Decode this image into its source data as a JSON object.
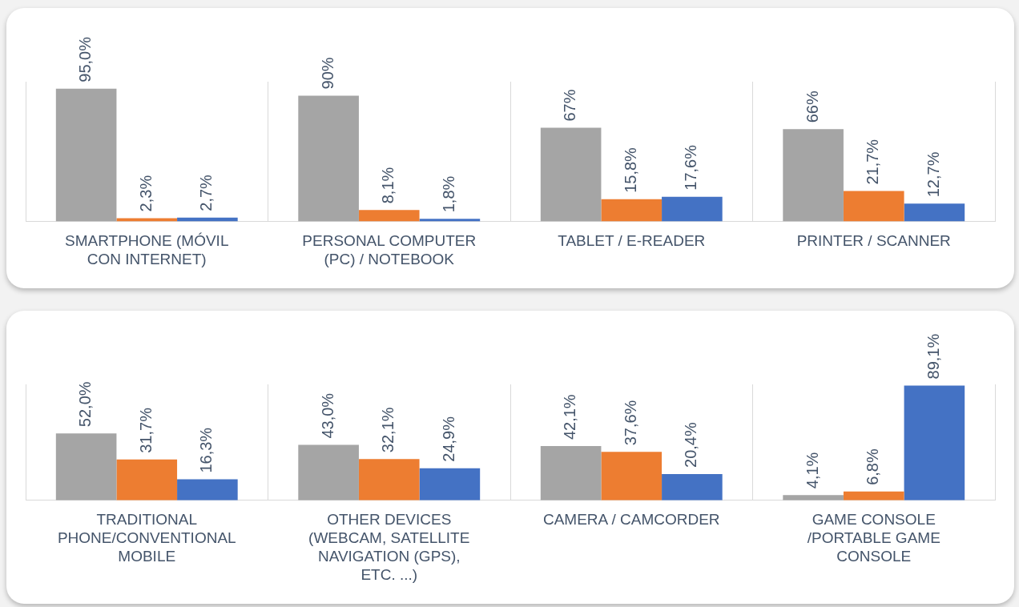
{
  "chart_data": [
    {
      "type": "bar",
      "categories": [
        "SMARTPHONE (MÓVIL CON INTERNET)",
        "PERSONAL COMPUTER (PC) / NOTEBOOK",
        "TABLET / E-READER",
        "PRINTER / SCANNER"
      ],
      "grid": "x",
      "series": [
        {
          "color": "#a5a5a5",
          "values": [
            95.0,
            90,
            67,
            66
          ],
          "value_labels": [
            "95,0%",
            "90%",
            "67%",
            "66%"
          ]
        },
        {
          "color": "#ed7d31",
          "values": [
            2.3,
            8.1,
            15.8,
            21.7
          ],
          "value_labels": [
            "2,3%",
            "8,1%",
            "15,8%",
            "21,7%"
          ]
        },
        {
          "color": "#4472c4",
          "values": [
            2.7,
            1.8,
            17.6,
            12.7
          ],
          "value_labels": [
            "2,7%",
            "1,8%",
            "17,6%",
            "12,7%"
          ]
        }
      ]
    },
    {
      "type": "bar",
      "categories": [
        "TRADITIONAL PHONE/CONVENTIONAL MOBILE",
        "OTHER DEVICES (WEBCAM, SATELLITE NAVIGATION (GPS), ETC. ...)",
        "CAMERA / CAMCORDER",
        "GAME CONSOLE /PORTABLE GAME CONSOLE"
      ],
      "grid": "x",
      "series": [
        {
          "color": "#a5a5a5",
          "values": [
            52.0,
            43.0,
            42.1,
            4.1
          ],
          "value_labels": [
            "52,0%",
            "43,0%",
            "42,1%",
            "4,1%"
          ]
        },
        {
          "color": "#ed7d31",
          "values": [
            31.7,
            32.1,
            37.6,
            6.8
          ],
          "value_labels": [
            "31,7%",
            "32,1%",
            "37,6%",
            "6,8%"
          ]
        },
        {
          "color": "#4472c4",
          "values": [
            16.3,
            24.9,
            20.4,
            89.1
          ],
          "value_labels": [
            "16,3%",
            "24,9%",
            "20,4%",
            "89,1%"
          ]
        }
      ]
    }
  ]
}
